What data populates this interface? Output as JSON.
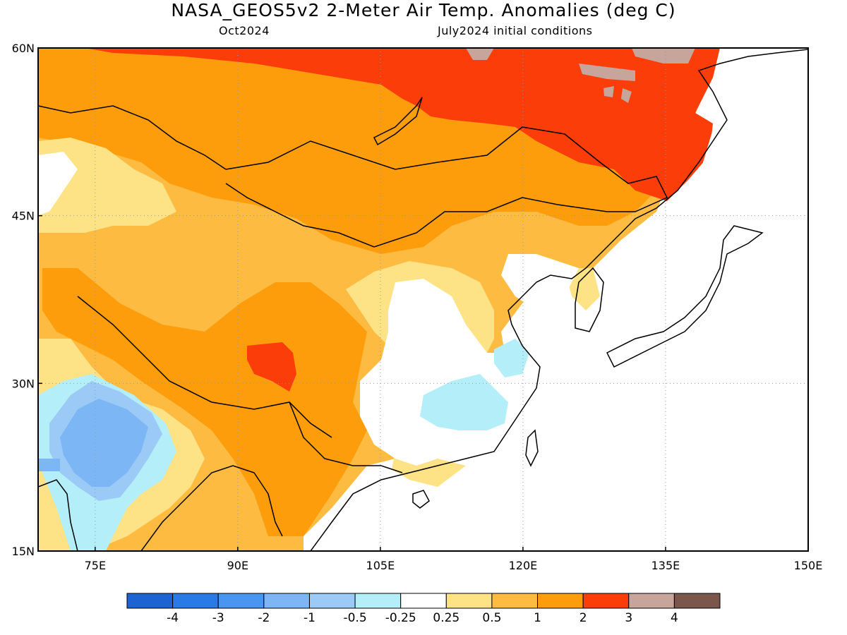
{
  "title": "NASA_GEOS5v2 2-Meter Air Temp. Anomalies (deg C)",
  "subtitle_left": "Oct2024",
  "subtitle_right": "July2024 initial conditions",
  "map": {
    "lon_range": [
      69,
      150
    ],
    "lat_range": [
      15,
      60
    ],
    "x_ticks": [
      "75E",
      "90E",
      "105E",
      "120E",
      "135E",
      "150E"
    ],
    "x_tick_values": [
      75,
      90,
      105,
      120,
      135,
      150
    ],
    "y_ticks": [
      "15N",
      "30N",
      "45N",
      "60N"
    ],
    "y_tick_values": [
      15,
      30,
      45,
      60
    ],
    "grid": "dotted"
  },
  "colorbar": {
    "colors": [
      "#1e63d2",
      "#2a7ae6",
      "#4a95f0",
      "#7cb6f5",
      "#9ccaf7",
      "#b4eef8",
      "#ffffff",
      "#fde386",
      "#fdbb42",
      "#fd9d0c",
      "#fb3d09",
      "#c8a59a",
      "#7a564b"
    ],
    "labels": [
      "-4",
      "-3",
      "-2",
      "-1",
      "-0.5",
      "-0.25",
      "0.25",
      "0.5",
      "1",
      "2",
      "3",
      "4"
    ]
  }
}
